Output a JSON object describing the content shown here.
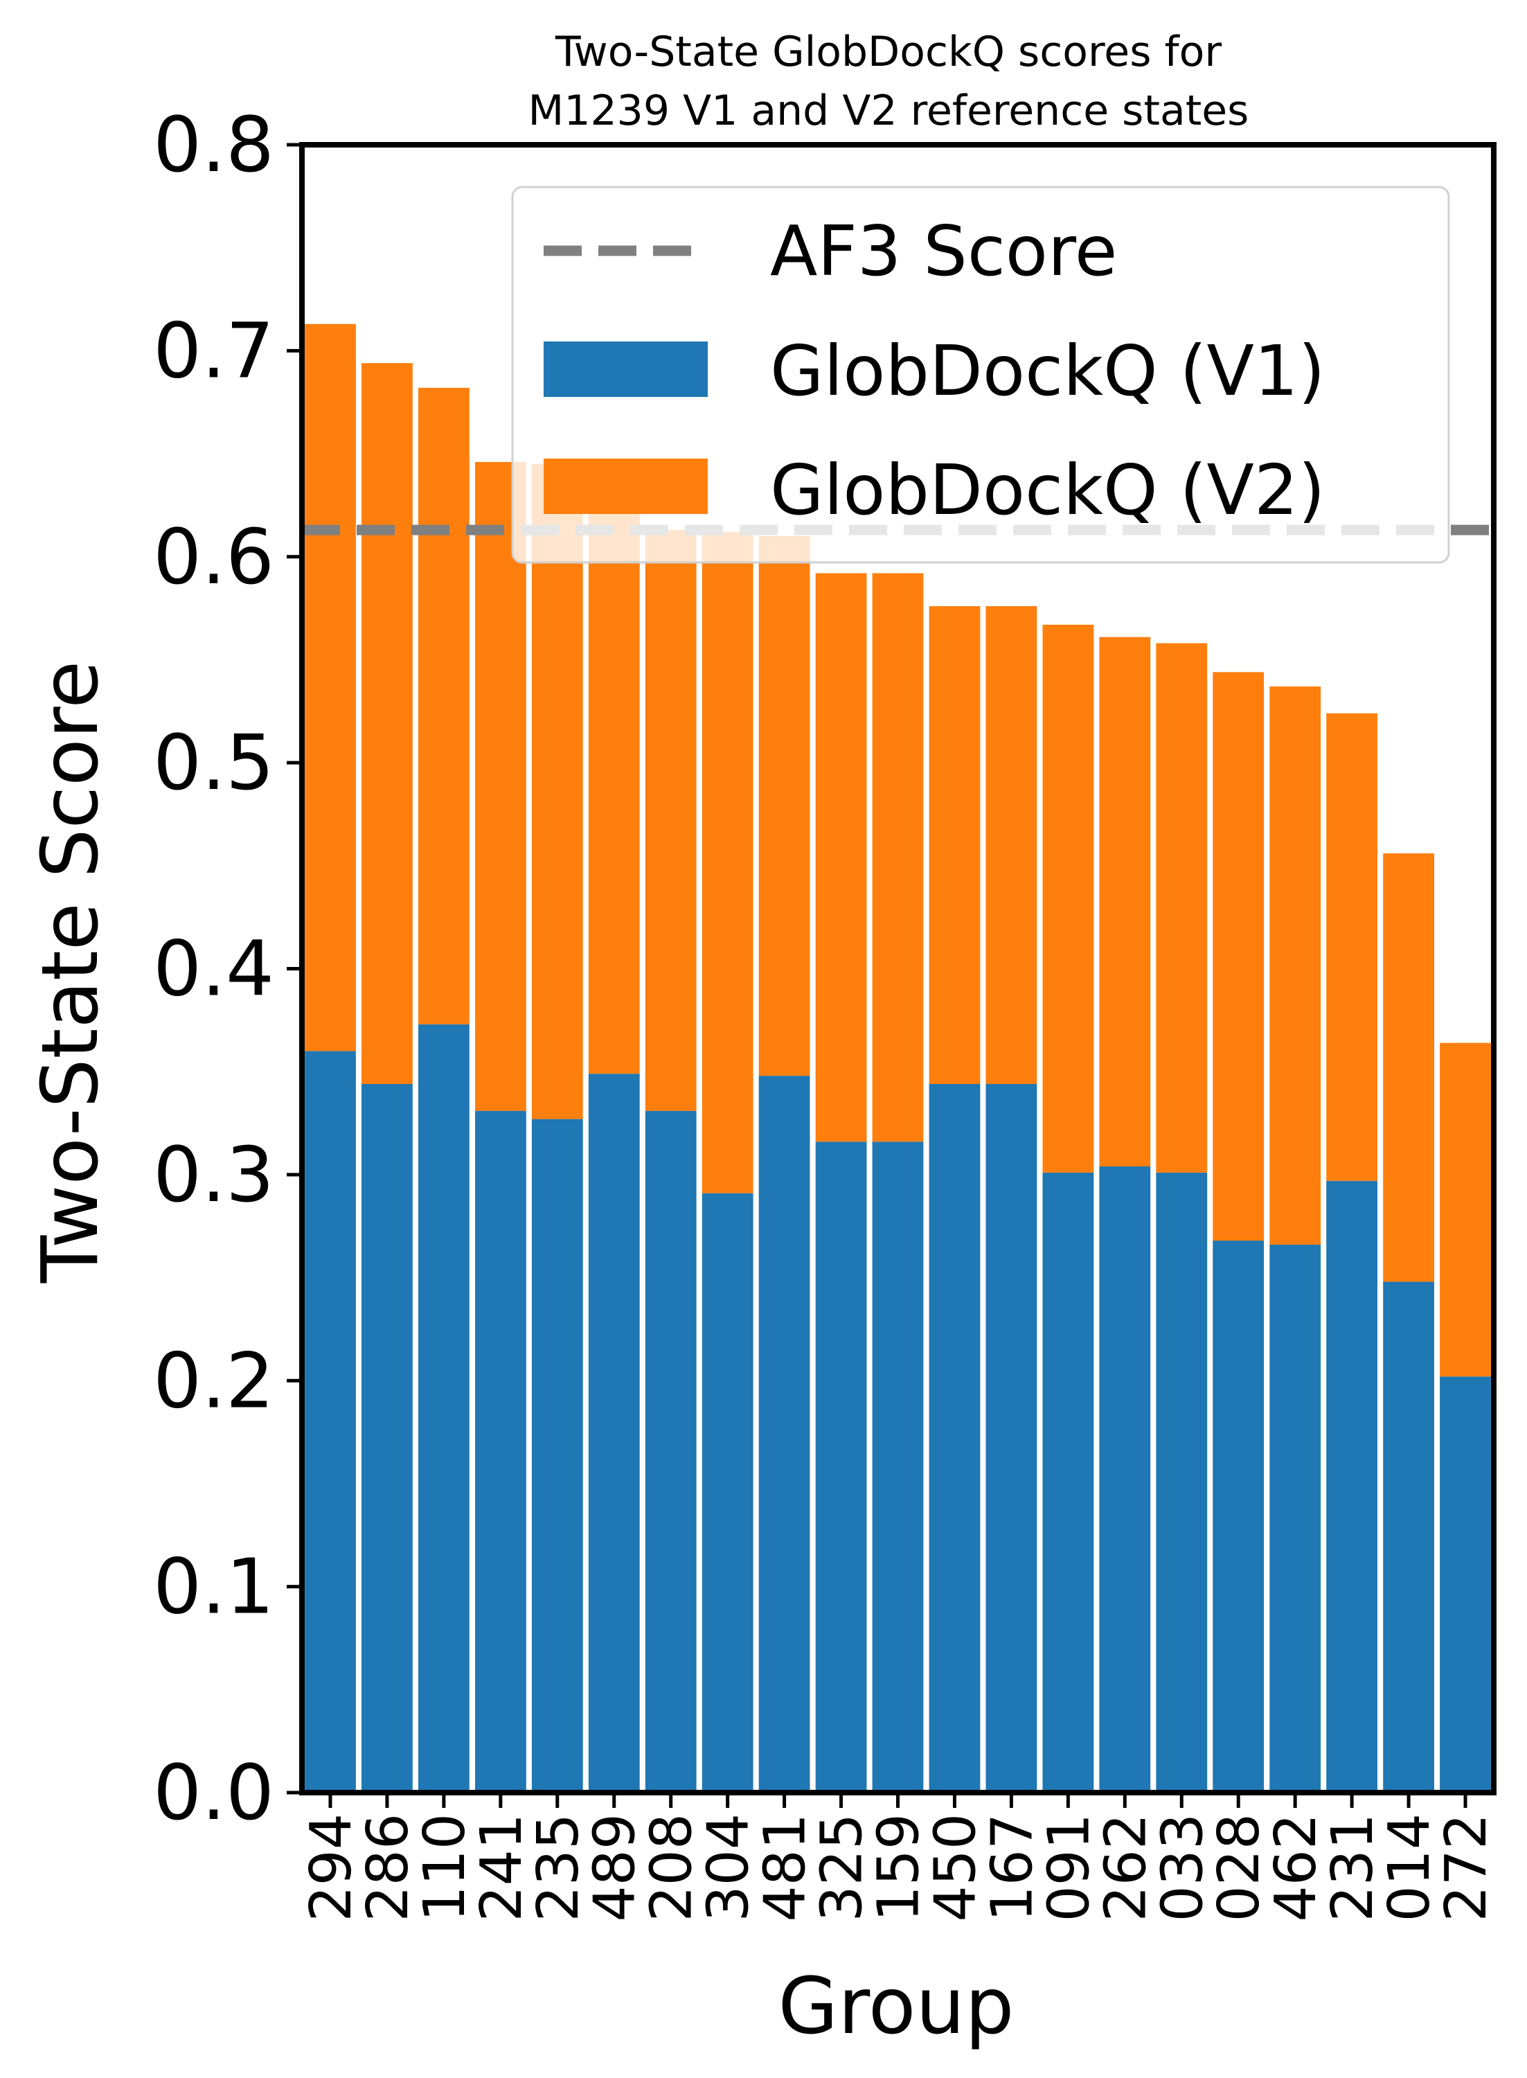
{
  "chart_data": {
    "type": "bar",
    "stacked": true,
    "title_lines": [
      "Two-State GlobDockQ scores for",
      "M1239 V1 and V2 reference states"
    ],
    "xlabel": "Group",
    "ylabel": "Two-State Score",
    "ylim": [
      0,
      0.8
    ],
    "yticks": [
      "0.0",
      "0.1",
      "0.2",
      "0.3",
      "0.4",
      "0.5",
      "0.6",
      "0.7",
      "0.8"
    ],
    "categories": [
      "294",
      "286",
      "110",
      "241",
      "235",
      "489",
      "208",
      "304",
      "481",
      "325",
      "159",
      "450",
      "167",
      "091",
      "262",
      "033",
      "028",
      "462",
      "231",
      "014",
      "272"
    ],
    "series": [
      {
        "name": "GlobDockQ (V1)",
        "color": "#1f77b4",
        "values": [
          0.36,
          0.344,
          0.373,
          0.331,
          0.327,
          0.349,
          0.331,
          0.291,
          0.348,
          0.316,
          0.316,
          0.344,
          0.344,
          0.301,
          0.304,
          0.301,
          0.268,
          0.266,
          0.297,
          0.248,
          0.202
        ]
      },
      {
        "name": "GlobDockQ (V2)",
        "color": "#ff7f0e",
        "values": [
          0.353,
          0.35,
          0.309,
          0.315,
          0.318,
          0.272,
          0.282,
          0.321,
          0.262,
          0.276,
          0.276,
          0.232,
          0.232,
          0.266,
          0.257,
          0.257,
          0.276,
          0.271,
          0.227,
          0.208,
          0.162
        ]
      }
    ],
    "reference_line": {
      "name": "AF3 Score",
      "value": 0.613,
      "color": "#808080",
      "style": "dashed"
    },
    "legend": {
      "placement": "top-right"
    },
    "grid": false
  }
}
